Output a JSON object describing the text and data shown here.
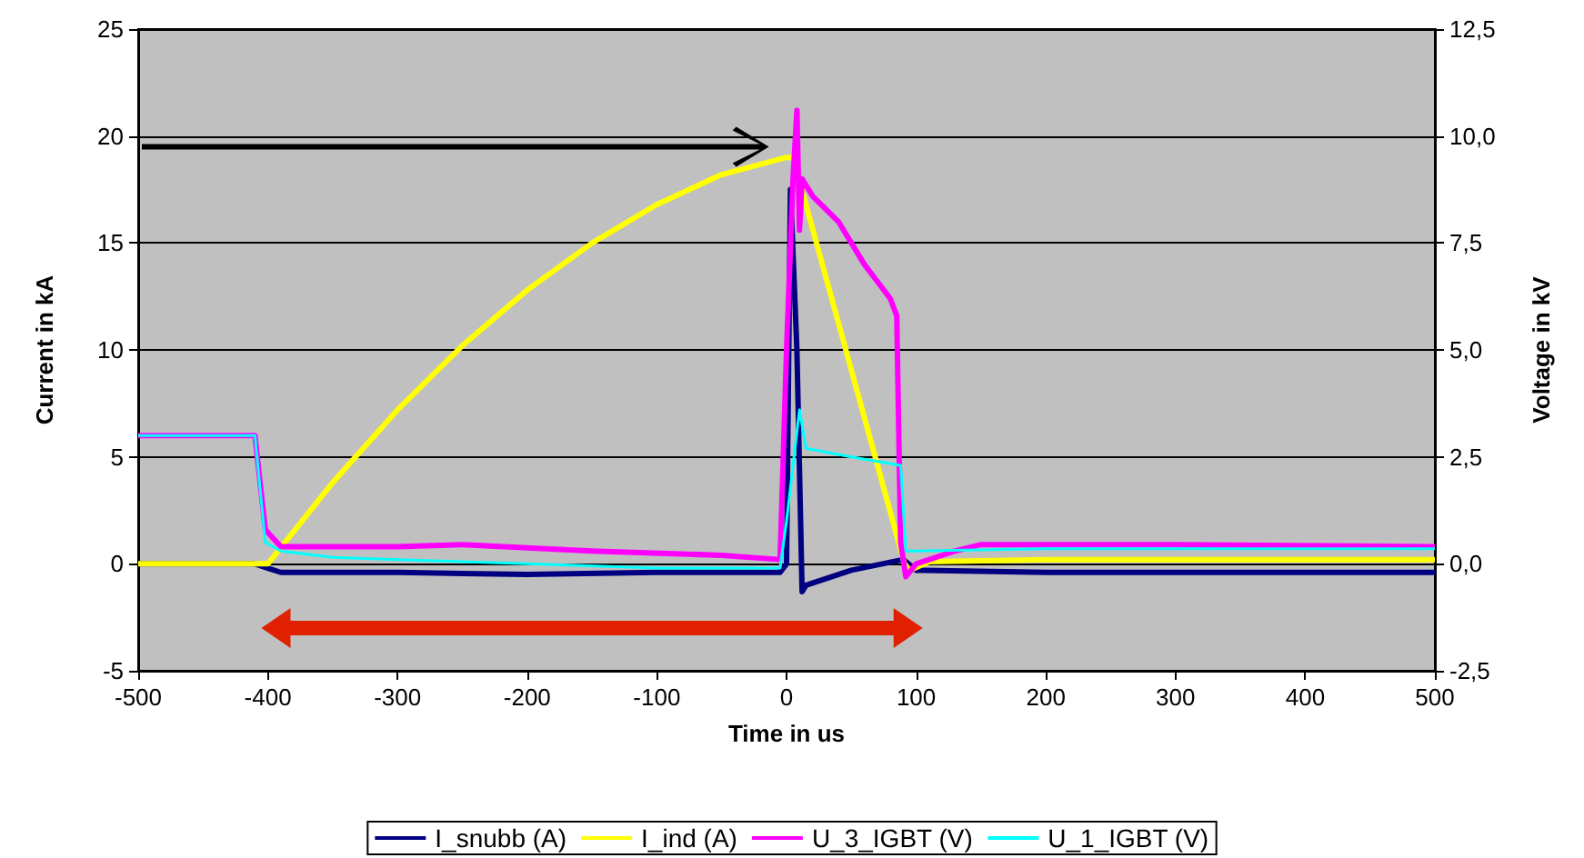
{
  "chart_data": {
    "type": "line",
    "xlabel": "Time in us",
    "ylabel": "Current in kA",
    "y2label": "Voltage in kV",
    "xlim": [
      -500,
      500
    ],
    "xticks": [
      -500,
      -400,
      -300,
      -200,
      -100,
      0,
      100,
      200,
      300,
      400,
      500
    ],
    "ylim": [
      -5,
      25
    ],
    "yticks": [
      -5,
      0,
      5,
      10,
      15,
      20,
      25
    ],
    "y2lim": [
      -2.5,
      12.5
    ],
    "y2ticks": [
      {
        "value": -2.5,
        "label": "-2,5"
      },
      {
        "value": 0,
        "label": "0,0"
      },
      {
        "value": 2.5,
        "label": "2,5"
      },
      {
        "value": 5,
        "label": "5,0"
      },
      {
        "value": 7.5,
        "label": "7,5"
      },
      {
        "value": 10,
        "label": "10,0"
      },
      {
        "value": 12.5,
        "label": "12,5"
      }
    ],
    "grid": "y",
    "legend": "bottom",
    "marker": "none",
    "line_style": "solid",
    "series": [
      {
        "name": "I_snubb (A)",
        "color": "#000080",
        "x": [
          -500,
          -410,
          -400,
          -390,
          -300,
          -200,
          -100,
          -5,
          0,
          3,
          8,
          12,
          15,
          50,
          90,
          100,
          200,
          300,
          400,
          500
        ],
        "values": [
          0,
          0,
          -0.2,
          -0.4,
          -0.4,
          -0.5,
          -0.4,
          -0.4,
          0,
          17.5,
          10,
          -1.3,
          -1,
          -0.3,
          0.2,
          -0.3,
          -0.4,
          -0.4,
          -0.4,
          -0.4
        ]
      },
      {
        "name": "I_ind (A)",
        "color": "#ffff00",
        "x": [
          -500,
          -400,
          -350,
          -300,
          -250,
          -200,
          -150,
          -100,
          -50,
          0,
          5,
          91,
          95,
          110,
          200,
          300,
          400,
          500
        ],
        "values": [
          0,
          0,
          3.8,
          7.2,
          10.2,
          12.8,
          15,
          16.8,
          18.2,
          19,
          19,
          0,
          -0.3,
          0.1,
          0.2,
          0.2,
          0.2,
          0.2
        ]
      },
      {
        "name": "U_3_IGBT (V)",
        "color": "#ff00ff",
        "axis": "y2",
        "x": [
          -500,
          -410,
          -402,
          -390,
          -300,
          -250,
          -150,
          -50,
          -5,
          0,
          5,
          8,
          10,
          12,
          20,
          40,
          60,
          80,
          85,
          88,
          92,
          100,
          130,
          150,
          300,
          500
        ],
        "values": [
          3,
          3,
          0.8,
          0.4,
          0.4,
          0.45,
          0.3,
          0.2,
          0.1,
          5,
          9,
          10.6,
          7.8,
          9,
          8.6,
          8,
          7,
          6.2,
          5.8,
          0.5,
          -0.3,
          0,
          0.3,
          0.45,
          0.45,
          0.4
        ]
      },
      {
        "name": "U_1_IGBT (V)",
        "color": "#00ffff",
        "axis": "y2",
        "x": [
          -500,
          -410,
          -402,
          -390,
          -350,
          -300,
          -200,
          -100,
          -5,
          0,
          10,
          15,
          50,
          88,
          92,
          100,
          200,
          300,
          400,
          500
        ],
        "values": [
          3,
          3,
          0.5,
          0.3,
          0.15,
          0.1,
          0,
          -0.1,
          -0.1,
          1,
          3.6,
          2.7,
          2.5,
          2.3,
          0.3,
          0.3,
          0.35,
          0.35,
          0.35,
          0.35
        ]
      }
    ]
  }
}
